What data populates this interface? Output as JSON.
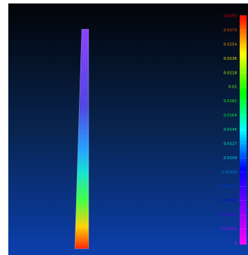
{
  "legend": {
    "labels": [
      "0.0291",
      "0.0273",
      "0.0254",
      "0.0236",
      "0.0218",
      "0.02",
      "0.0182",
      "0.0164",
      "0.0145",
      "0.0127",
      "0.0109",
      "0.00909",
      "0.00727",
      "0.00545",
      "0.00364",
      "0.00182",
      "0"
    ]
  }
}
